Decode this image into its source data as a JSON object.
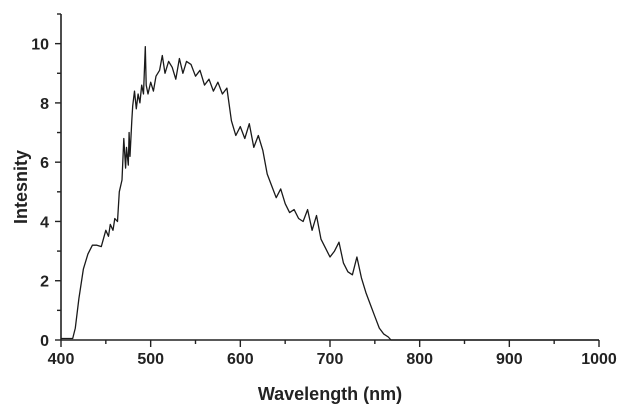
{
  "chart_data": {
    "type": "line",
    "title": "",
    "xlabel": "Wavelength (nm)",
    "ylabel": "Intesnity",
    "xlim": [
      400,
      1000
    ],
    "ylim": [
      0,
      11
    ],
    "xticks": [
      400,
      500,
      600,
      700,
      800,
      900,
      1000
    ],
    "yticks": [
      0,
      2,
      4,
      6,
      8,
      10
    ],
    "grid": false,
    "legend": "none",
    "colors": {
      "line": "#1a1a1a",
      "axis": "#222222"
    },
    "series": [
      {
        "x": [
          400,
          413,
          416,
          420,
          425,
          430,
          435,
          440,
          445,
          450,
          453,
          455,
          458,
          460,
          463,
          465,
          468,
          470,
          472,
          473,
          475,
          476,
          477,
          479,
          480,
          482,
          484,
          486,
          488,
          490,
          492,
          494,
          495,
          497,
          500,
          503,
          506,
          510,
          513,
          516,
          520,
          524,
          528,
          532,
          536,
          540,
          545,
          550,
          555,
          560,
          565,
          570,
          575,
          580,
          585,
          590,
          595,
          600,
          605,
          610,
          615,
          620,
          625,
          630,
          635,
          640,
          645,
          650,
          655,
          660,
          665,
          670,
          675,
          680,
          685,
          690,
          695,
          700,
          705,
          710,
          715,
          720,
          725,
          730,
          735,
          740,
          745,
          750,
          755,
          760,
          765,
          768,
          770,
          1000
        ],
        "values": [
          0.05,
          0.05,
          0.4,
          1.4,
          2.4,
          2.9,
          3.2,
          3.2,
          3.15,
          3.7,
          3.5,
          3.9,
          3.7,
          4.1,
          4.0,
          5.0,
          5.4,
          6.8,
          5.8,
          6.5,
          5.9,
          7.0,
          6.2,
          7.4,
          7.9,
          8.4,
          7.8,
          8.3,
          8.0,
          8.6,
          8.3,
          9.9,
          8.6,
          8.3,
          8.7,
          8.4,
          8.9,
          9.1,
          9.6,
          9.0,
          9.4,
          9.2,
          8.8,
          9.5,
          9.0,
          9.4,
          9.3,
          8.9,
          9.1,
          8.6,
          8.8,
          8.4,
          8.7,
          8.3,
          8.5,
          7.4,
          6.9,
          7.2,
          6.8,
          7.3,
          6.5,
          6.9,
          6.4,
          5.6,
          5.2,
          4.8,
          5.1,
          4.6,
          4.3,
          4.4,
          4.1,
          4.0,
          4.4,
          3.7,
          4.2,
          3.4,
          3.1,
          2.8,
          3.0,
          3.3,
          2.6,
          2.3,
          2.2,
          2.8,
          2.1,
          1.6,
          1.2,
          0.8,
          0.4,
          0.2,
          0.1,
          0.0,
          0.0,
          0.0
        ]
      }
    ]
  }
}
